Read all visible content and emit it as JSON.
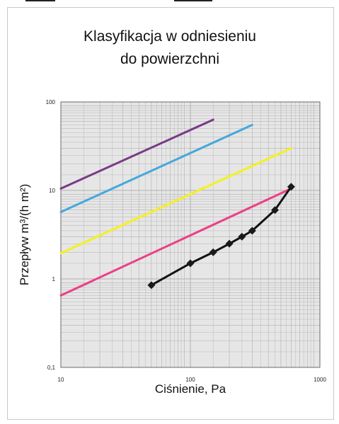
{
  "chart_data": {
    "type": "line",
    "title_line1": "Klasyfikacja w odniesieniu",
    "title_line2": "do powierzchni",
    "xlabel": "Ciśnienie, Pa",
    "ylabel": "Przepływ m³/(h m²)",
    "x_scale": "log",
    "y_scale": "log",
    "xlim": [
      10,
      1000
    ],
    "ylim": [
      0.1,
      100
    ],
    "x_ticks": [
      {
        "value": 10,
        "label": "10"
      },
      {
        "value": 100,
        "label": "100"
      },
      {
        "value": 1000,
        "label": "1000"
      }
    ],
    "y_ticks": [
      {
        "value": 0.1,
        "label": "0,1"
      },
      {
        "value": 1,
        "label": "1"
      },
      {
        "value": 10,
        "label": "10"
      },
      {
        "value": 100,
        "label": "100"
      }
    ],
    "grid": true,
    "plot_background": "#e6e6e6",
    "grid_color": "#b0b0b0",
    "series": [
      {
        "color": "#7a3a86",
        "markers": false,
        "points": [
          [
            10,
            10.5
          ],
          [
            150,
            63
          ]
        ]
      },
      {
        "color": "#45a8dc",
        "markers": false,
        "points": [
          [
            10,
            5.7
          ],
          [
            300,
            55
          ]
        ]
      },
      {
        "color": "#f5f020",
        "markers": false,
        "points": [
          [
            10,
            1.95
          ],
          [
            600,
            30
          ]
        ]
      },
      {
        "color": "#ec3f86",
        "markers": false,
        "points": [
          [
            10,
            0.65
          ],
          [
            600,
            10.5
          ]
        ]
      },
      {
        "color": "#111111",
        "markers": true,
        "marker_color": "#1a1a1a",
        "points": [
          [
            50,
            0.85
          ],
          [
            100,
            1.5
          ],
          [
            150,
            2.0
          ],
          [
            200,
            2.5
          ],
          [
            250,
            3.0
          ],
          [
            300,
            3.5
          ],
          [
            450,
            6.0
          ],
          [
            600,
            11.0
          ]
        ]
      }
    ]
  }
}
